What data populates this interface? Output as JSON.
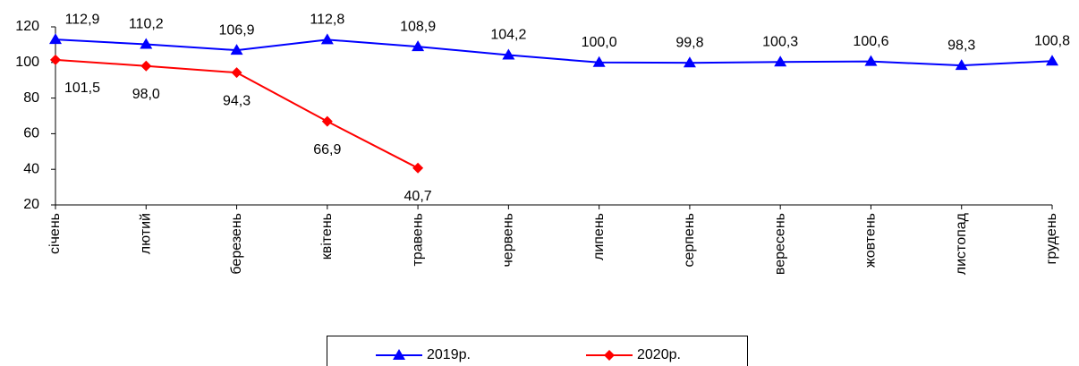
{
  "chart_data": {
    "type": "line",
    "categories": [
      "січень",
      "лютий",
      "березень",
      "квітень",
      "травень",
      "червень",
      "липень",
      "серпень",
      "вересень",
      "жовтень",
      "листопад",
      "грудень"
    ],
    "series": [
      {
        "name": "2019р.",
        "color": "#0000ff",
        "marker": "triangle",
        "values": [
          112.9,
          110.2,
          106.9,
          112.8,
          108.9,
          104.2,
          100.0,
          99.8,
          100.3,
          100.6,
          98.3,
          100.8
        ],
        "value_labels": [
          "112,9",
          "110,2",
          "106,9",
          "112,8",
          "108,9",
          "104,2",
          "100,0",
          "99,8",
          "100,3",
          "100,6",
          "98,3",
          "100,8"
        ]
      },
      {
        "name": "2020р.",
        "color": "#ff0000",
        "marker": "diamond",
        "values": [
          101.5,
          98.0,
          94.3,
          66.9,
          40.7,
          null,
          null,
          null,
          null,
          null,
          null,
          null
        ],
        "value_labels": [
          "101,5",
          "98,0",
          "94,3",
          "66,9",
          "40,7",
          null,
          null,
          null,
          null,
          null,
          null,
          null
        ]
      }
    ],
    "ylim": [
      20,
      120
    ],
    "yticks": [
      20,
      40,
      60,
      80,
      100,
      120
    ],
    "grid": false,
    "legend": "bottom"
  }
}
